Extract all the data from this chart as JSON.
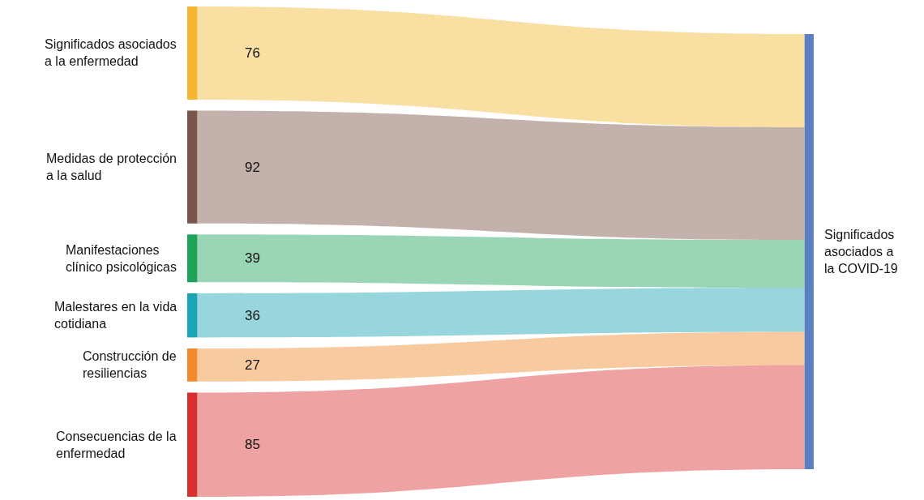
{
  "chart_data": {
    "type": "other",
    "categories": [
      "Significados asociados a la enfermedad",
      "Medidas de protección a la salud",
      "Manifestaciones clínico psicológicas",
      "Malestares en la vida cotidiana",
      "Construcción de resiliencias",
      "Consecuencias de la enfermedad"
    ],
    "values": [
      76,
      92,
      39,
      36,
      27,
      85
    ],
    "colors": [
      "#f5b731",
      "#7b5548",
      "#1fa35a",
      "#1aa5b4",
      "#f08a2c",
      "#d9302f"
    ],
    "data_labels": true,
    "annotations": [
      "Significados asociados a la COVID-19"
    ]
  }
}
